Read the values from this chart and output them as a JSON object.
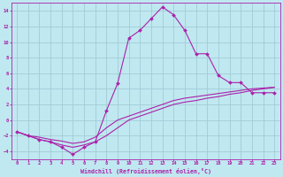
{
  "xlabel": "Windchill (Refroidissement éolien,°C)",
  "background_color": "#c0e8f0",
  "grid_color": "#a0ccd8",
  "line_color": "#aa22aa",
  "xlim": [
    -0.5,
    23.5
  ],
  "ylim": [
    -5,
    15
  ],
  "xticks": [
    0,
    1,
    2,
    3,
    4,
    5,
    6,
    7,
    8,
    9,
    10,
    11,
    12,
    13,
    14,
    15,
    16,
    17,
    18,
    19,
    20,
    21,
    22,
    23
  ],
  "yticks": [
    -4,
    -2,
    0,
    2,
    4,
    6,
    8,
    10,
    12,
    14
  ],
  "line1_x": [
    0,
    1,
    2,
    3,
    4,
    5,
    6,
    7,
    8,
    9,
    10,
    11,
    12,
    13,
    14,
    15,
    16,
    17,
    18,
    19,
    20,
    21,
    22,
    23
  ],
  "line1_y": [
    -1.5,
    -2.0,
    -2.5,
    -2.8,
    -3.5,
    -4.4,
    -3.5,
    -2.8,
    1.2,
    4.7,
    10.5,
    11.5,
    13.0,
    14.5,
    13.5,
    11.5,
    8.5,
    8.5,
    5.7,
    4.8,
    4.8,
    3.5,
    3.5,
    3.5
  ],
  "line2_x": [
    0,
    1,
    2,
    3,
    4,
    5,
    6,
    7,
    8,
    9,
    10,
    11,
    12,
    13,
    14,
    15,
    16,
    17,
    18,
    19,
    20,
    21,
    22,
    23
  ],
  "line2_y": [
    -1.5,
    -2.0,
    -2.5,
    -2.8,
    -3.2,
    -3.5,
    -3.2,
    -2.8,
    -2.0,
    -1.0,
    0.0,
    0.5,
    1.0,
    1.5,
    2.0,
    2.3,
    2.5,
    2.8,
    3.0,
    3.3,
    3.5,
    3.8,
    4.0,
    4.2
  ],
  "line3_x": [
    0,
    1,
    2,
    3,
    4,
    5,
    6,
    7,
    8,
    9,
    10,
    11,
    12,
    13,
    14,
    15,
    16,
    17,
    18,
    19,
    20,
    21,
    22,
    23
  ],
  "line3_y": [
    -1.5,
    -2.0,
    -2.2,
    -2.5,
    -2.7,
    -3.0,
    -2.8,
    -2.2,
    -1.0,
    0.0,
    0.5,
    1.0,
    1.5,
    2.0,
    2.5,
    2.8,
    3.0,
    3.2,
    3.4,
    3.6,
    3.8,
    4.0,
    4.1,
    4.2
  ]
}
